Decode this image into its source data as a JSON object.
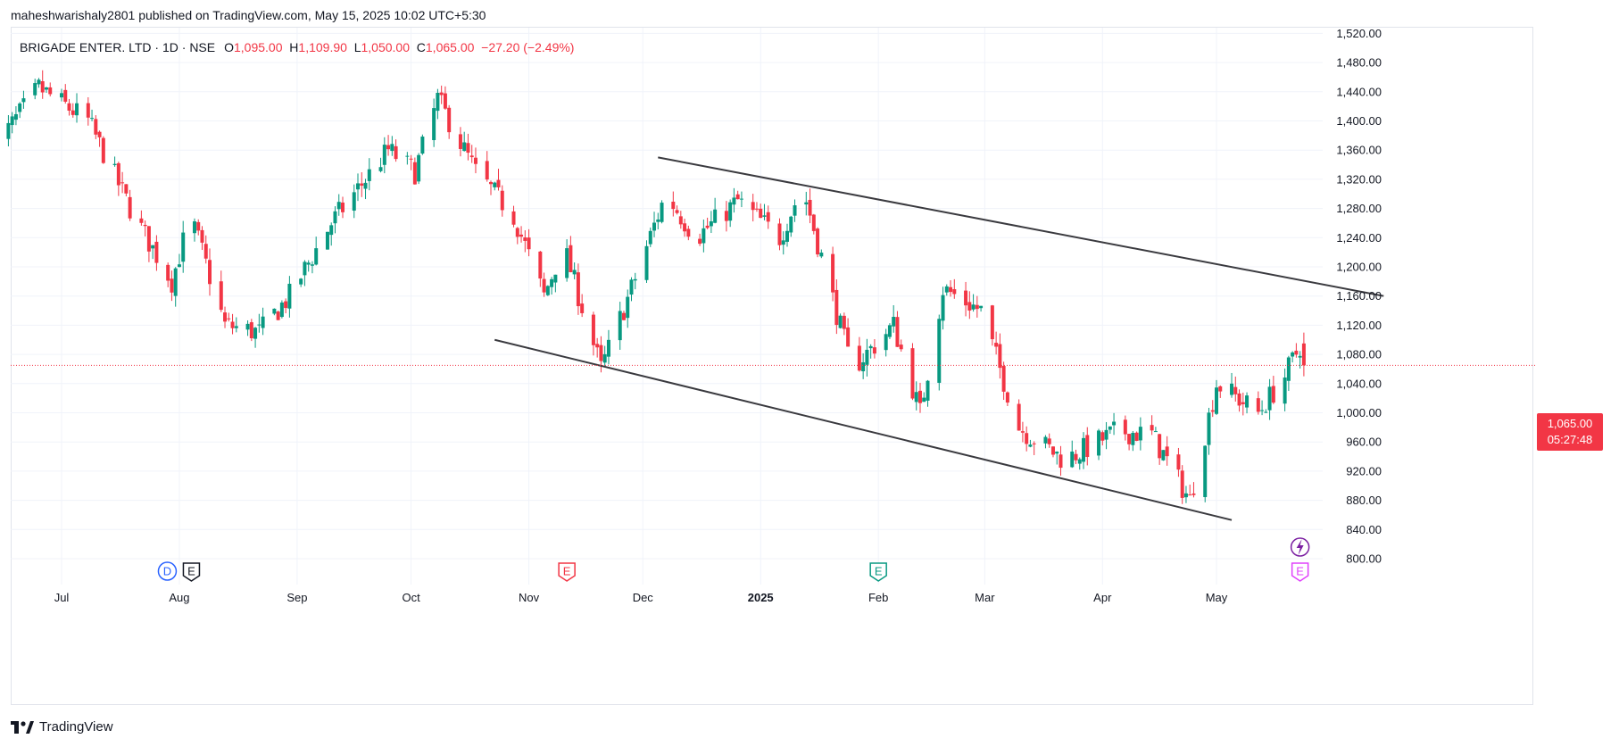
{
  "publisher": "maheshwarishaly2801 published on TradingView.com, May 15, 2025 10:02 UTC+5:30",
  "brand": "TradingView",
  "legend": {
    "symbol": "BRIGADE ENTER. LTD · 1D · NSE",
    "o_label": "O",
    "o_value": "1,095.00",
    "h_label": "H",
    "h_value": "1,109.90",
    "l_label": "L",
    "l_value": "1,050.00",
    "c_label": "C",
    "c_value": "1,065.00",
    "change": "−27.20 (−2.49%)"
  },
  "price_badge": {
    "price": "1,065.00",
    "countdown": "05:27:48"
  },
  "colors": {
    "up": "#089981",
    "down": "#f23645",
    "trendline": "#3a3a3f",
    "grid": "#f0f3fa",
    "price_line": "#f23645"
  },
  "chart_data": {
    "type": "candlestick",
    "ylim": [
      780,
      1540
    ],
    "price_ticks": [
      800,
      840,
      880,
      920,
      960,
      1000,
      1040,
      1080,
      1120,
      1160,
      1200,
      1240,
      1280,
      1320,
      1360,
      1400,
      1440,
      1480,
      1520
    ],
    "price_tick_labels": [
      "800.00",
      "840.00",
      "880.00",
      "920.00",
      "960.00",
      "1,000.00",
      "1,040.00",
      "1,080.00",
      "1,120.00",
      "1,160.00",
      "1,200.00",
      "1,240.00",
      "1,280.00",
      "1,320.00",
      "1,360.00",
      "1,400.00",
      "1,440.00",
      "1,480.00",
      "1,520.00"
    ],
    "time_ticks": [
      {
        "date": "2024-07-01",
        "label": "Jul",
        "bold": false
      },
      {
        "date": "2024-08-01",
        "label": "Aug",
        "bold": false
      },
      {
        "date": "2024-09-01",
        "label": "Sep",
        "bold": false
      },
      {
        "date": "2024-10-01",
        "label": "Oct",
        "bold": false
      },
      {
        "date": "2024-11-01",
        "label": "Nov",
        "bold": false
      },
      {
        "date": "2024-12-01",
        "label": "Dec",
        "bold": false
      },
      {
        "date": "2025-01-01",
        "label": "2025",
        "bold": true
      },
      {
        "date": "2025-02-01",
        "label": "Feb",
        "bold": false
      },
      {
        "date": "2025-03-01",
        "label": "Mar",
        "bold": false
      },
      {
        "date": "2025-04-01",
        "label": "Apr",
        "bold": false
      },
      {
        "date": "2025-05-01",
        "label": "May",
        "bold": false
      }
    ],
    "key_closes": [
      {
        "date": "2024-06-13",
        "close": 1360
      },
      {
        "date": "2024-06-25",
        "close": 1445
      },
      {
        "date": "2024-07-08",
        "close": 1400
      },
      {
        "date": "2024-07-20",
        "close": 1270
      },
      {
        "date": "2024-07-30",
        "close": 1180
      },
      {
        "date": "2024-08-04",
        "close": 1270
      },
      {
        "date": "2024-08-13",
        "close": 1120
      },
      {
        "date": "2024-08-22",
        "close": 1110
      },
      {
        "date": "2024-08-30",
        "close": 1160
      },
      {
        "date": "2024-09-10",
        "close": 1260
      },
      {
        "date": "2024-09-25",
        "close": 1360
      },
      {
        "date": "2024-10-02",
        "close": 1330
      },
      {
        "date": "2024-10-08",
        "close": 1430
      },
      {
        "date": "2024-10-18",
        "close": 1330
      },
      {
        "date": "2024-10-28",
        "close": 1270
      },
      {
        "date": "2024-11-05",
        "close": 1160
      },
      {
        "date": "2024-11-10",
        "close": 1230
      },
      {
        "date": "2024-11-20",
        "close": 1060
      },
      {
        "date": "2024-11-28",
        "close": 1170
      },
      {
        "date": "2024-12-07",
        "close": 1300
      },
      {
        "date": "2024-12-15",
        "close": 1240
      },
      {
        "date": "2024-12-26",
        "close": 1290
      },
      {
        "date": "2025-01-06",
        "close": 1240
      },
      {
        "date": "2025-01-12",
        "close": 1310
      },
      {
        "date": "2025-01-25",
        "close": 1060
      },
      {
        "date": "2025-02-05",
        "close": 1120
      },
      {
        "date": "2025-02-12",
        "close": 1000
      },
      {
        "date": "2025-02-18",
        "close": 1170
      },
      {
        "date": "2025-02-28",
        "close": 1140
      },
      {
        "date": "2025-03-10",
        "close": 980
      },
      {
        "date": "2025-03-22",
        "close": 935
      },
      {
        "date": "2025-04-05",
        "close": 975
      },
      {
        "date": "2025-04-14",
        "close": 970
      },
      {
        "date": "2025-04-24",
        "close": 880
      },
      {
        "date": "2025-05-01",
        "close": 1040
      },
      {
        "date": "2025-05-12",
        "close": 1000
      },
      {
        "date": "2025-05-19",
        "close": 1050
      },
      {
        "date": "2025-05-23",
        "close": 1092
      },
      {
        "date": "2025-05-24",
        "close": 1065
      }
    ],
    "last_bar": {
      "date": "2025-05-24",
      "open": 1095.0,
      "high": 1109.9,
      "low": 1050.0,
      "close": 1065.0
    },
    "trendlines": [
      {
        "name": "upper-channel",
        "from": {
          "date": "2024-12-05",
          "price": 1350
        },
        "to": {
          "date": "2025-06-14",
          "price": 1160
        }
      },
      {
        "name": "lower-channel",
        "from": {
          "date": "2024-10-23",
          "price": 1100
        },
        "to": {
          "date": "2025-05-05",
          "price": 853
        }
      }
    ],
    "events": [
      {
        "date": "2024-08-01",
        "letters": [
          "D",
          "E"
        ],
        "colors": [
          "#2962ff",
          "#131722"
        ]
      },
      {
        "date": "2024-11-11",
        "letters": [
          "E"
        ],
        "colors": [
          "#f23645"
        ]
      },
      {
        "date": "2025-02-01",
        "letters": [
          "E"
        ],
        "colors": [
          "#089981"
        ]
      },
      {
        "date": "2025-05-23",
        "letters": [
          "E"
        ],
        "colors": [
          "#e040fb"
        ]
      }
    ]
  }
}
